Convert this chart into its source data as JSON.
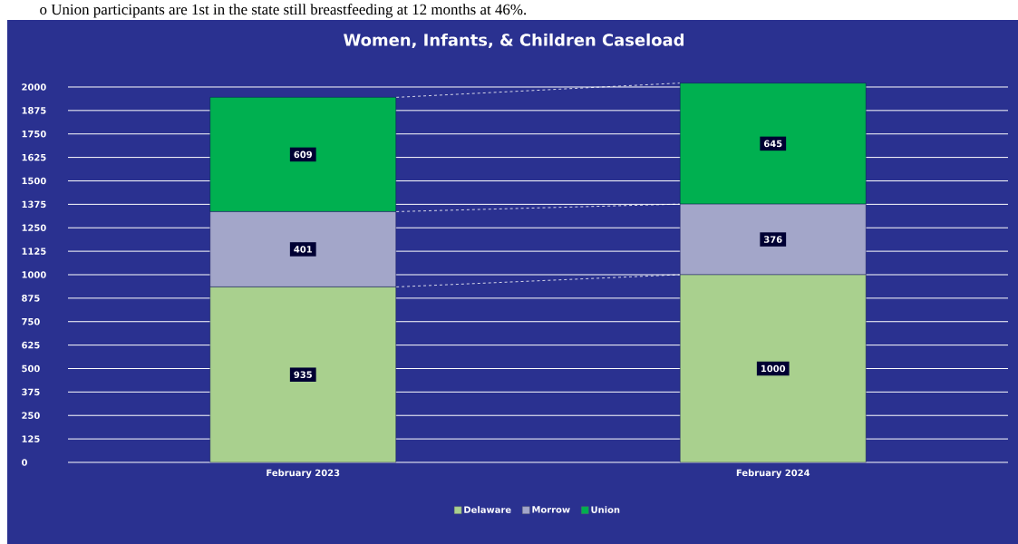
{
  "chart_data": {
    "type": "bar",
    "title": "Women, Infants, & Children Caseload",
    "stacked": true,
    "categories": [
      "February 2023",
      "February 2024"
    ],
    "series": [
      {
        "name": "Delaware",
        "color": "#a9d08e",
        "values": [
          935,
          1000
        ]
      },
      {
        "name": "Morrow",
        "color": "#a3a6c9",
        "values": [
          401,
          376
        ]
      },
      {
        "name": "Union",
        "color": "#00b050",
        "values": [
          609,
          645
        ]
      }
    ],
    "ylim": [
      0,
      2025
    ],
    "yticks": [
      0,
      125,
      250,
      375,
      500,
      625,
      750,
      875,
      1000,
      1125,
      1250,
      1375,
      1500,
      1625,
      1750,
      1875,
      2000
    ],
    "grid": "y",
    "legend": "bottom",
    "data_labels": true,
    "annotations": [
      "o   Union participants are 1st in the state still breastfeeding at 12 months at 46%."
    ]
  }
}
